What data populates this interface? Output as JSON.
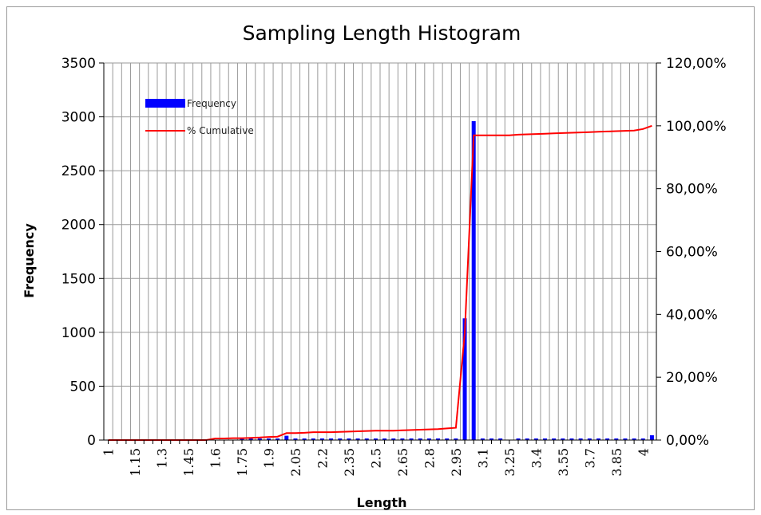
{
  "chart_data": {
    "type": "bar",
    "title": "Sampling Length Histogram",
    "xlabel": "Length",
    "ylabel": "Frequency",
    "ylim": [
      0,
      3500
    ],
    "y2lim": [
      0,
      120
    ],
    "yticks": [
      "0",
      "500",
      "1000",
      "1500",
      "2000",
      "2500",
      "3000",
      "3500"
    ],
    "y2ticks": [
      "0,00%",
      "20,00%",
      "40,00%",
      "60,00%",
      "80,00%",
      "100,00%",
      "120,00%"
    ],
    "grid": true,
    "legend_position": "top-left",
    "x": [
      1,
      1.05,
      1.1,
      1.15,
      1.2,
      1.25,
      1.3,
      1.35,
      1.4,
      1.45,
      1.5,
      1.55,
      1.6,
      1.65,
      1.7,
      1.75,
      1.8,
      1.85,
      1.9,
      1.95,
      2,
      2.05,
      2.1,
      2.15,
      2.2,
      2.25,
      2.3,
      2.35,
      2.4,
      2.45,
      2.5,
      2.55,
      2.6,
      2.65,
      2.7,
      2.75,
      2.8,
      2.85,
      2.9,
      2.95,
      3,
      3.05,
      3.1,
      3.15,
      3.2,
      3.25,
      3.3,
      3.35,
      3.4,
      3.45,
      3.5,
      3.55,
      3.6,
      3.65,
      3.7,
      3.75,
      3.8,
      3.85,
      3.9,
      3.95,
      4,
      4.05
    ],
    "x_tick_labels": [
      "1",
      "1.15",
      "1.3",
      "1.45",
      "1.6",
      "1.75",
      "1.9",
      "2.05",
      "2.2",
      "2.35",
      "2.5",
      "2.65",
      "2.8",
      "2.95",
      "3.1",
      "3.25",
      "3.4",
      "3.55",
      "3.7",
      "3.85",
      "4"
    ],
    "series": [
      {
        "name": "Frequency",
        "axis": "left",
        "color": "#0000ff",
        "values": [
          0,
          0,
          0,
          0,
          0,
          0,
          0,
          0,
          0,
          0,
          0,
          0,
          0,
          0,
          0,
          5,
          10,
          10,
          10,
          15,
          40,
          10,
          10,
          10,
          10,
          10,
          10,
          10,
          10,
          10,
          10,
          10,
          10,
          10,
          10,
          10,
          10,
          10,
          10,
          10,
          1130,
          2960,
          10,
          10,
          10,
          0,
          10,
          10,
          10,
          10,
          10,
          10,
          10,
          10,
          10,
          10,
          10,
          10,
          10,
          10,
          10,
          45
        ]
      },
      {
        "name": "% Cumulative",
        "axis": "right",
        "color": "#ff0000",
        "values": [
          0,
          0,
          0,
          0,
          0,
          0,
          0,
          0,
          0,
          0,
          0,
          0,
          0.5,
          0.5,
          0.6,
          0.6,
          0.7,
          0.8,
          1.0,
          1.1,
          2.2,
          2.2,
          2.3,
          2.5,
          2.5,
          2.5,
          2.6,
          2.7,
          2.8,
          2.9,
          3.0,
          3.0,
          3.0,
          3.1,
          3.2,
          3.3,
          3.4,
          3.5,
          3.7,
          3.9,
          34.0,
          97.0,
          97.0,
          97.0,
          97.0,
          97.0,
          97.2,
          97.3,
          97.4,
          97.5,
          97.6,
          97.7,
          97.8,
          97.9,
          98.0,
          98.1,
          98.2,
          98.3,
          98.4,
          98.5,
          99.0,
          100.0
        ]
      }
    ]
  }
}
